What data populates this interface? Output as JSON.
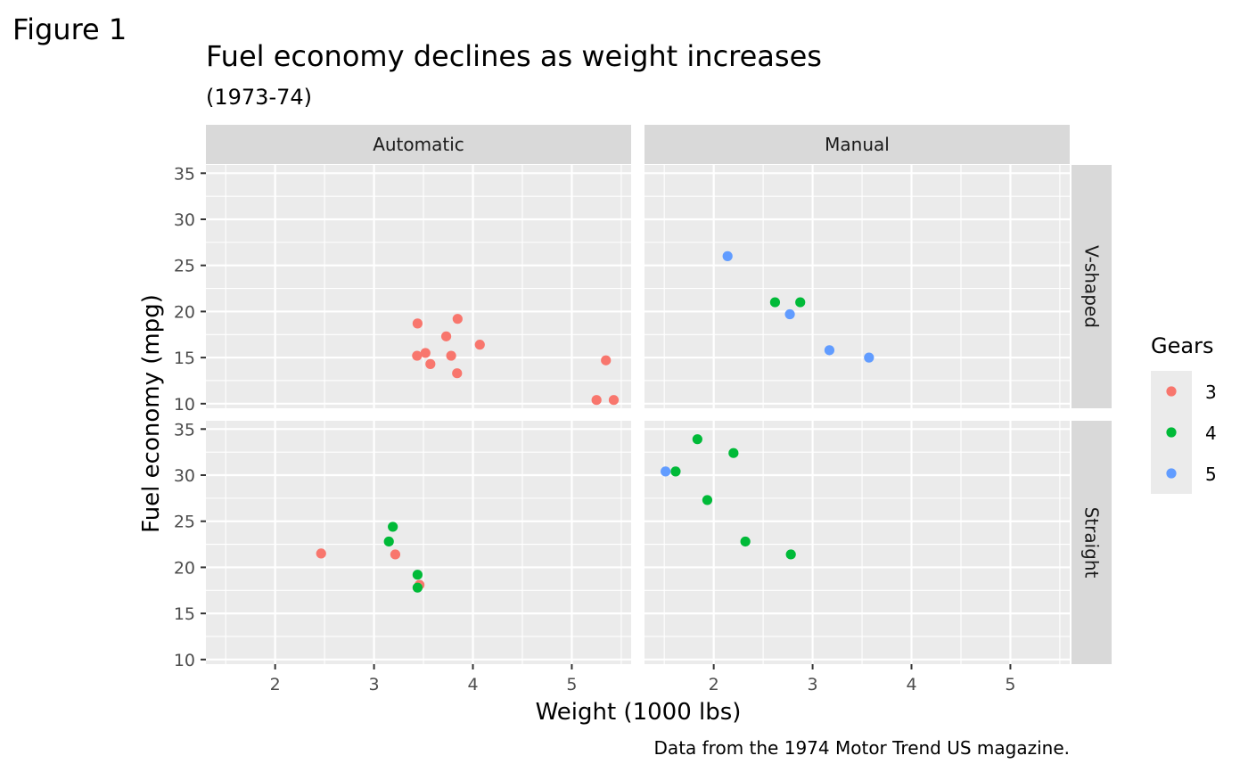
{
  "figure_label": "Figure 1",
  "chart_data": {
    "type": "scatter",
    "title": "Fuel economy declines as weight increases",
    "subtitle": "(1973-74)",
    "xlabel": "Weight (1000 lbs)",
    "ylabel": "Fuel economy (mpg)",
    "caption": "Data from the 1974 Motor Trend US magazine.",
    "xlim": [
      1.3,
      5.6
    ],
    "ylim": [
      9.5,
      35.9
    ],
    "x_ticks": [
      2,
      3,
      4,
      5
    ],
    "y_ticks": [
      10,
      15,
      20,
      25,
      30,
      35
    ],
    "grid": true,
    "facet_columns": [
      "Automatic",
      "Manual"
    ],
    "facet_rows": [
      "V-shaped",
      "Straight"
    ],
    "legend": {
      "title": "Gears",
      "position": "right",
      "entries": [
        {
          "label": "3",
          "color": "#F8766D"
        },
        {
          "label": "4",
          "color": "#00BA38"
        },
        {
          "label": "5",
          "color": "#619CFF"
        }
      ]
    },
    "panels": [
      {
        "column": "Automatic",
        "row": "V-shaped",
        "points": [
          {
            "x": 3.44,
            "y": 18.7,
            "gear": "3"
          },
          {
            "x": 3.57,
            "y": 14.3,
            "gear": "3"
          },
          {
            "x": 4.07,
            "y": 16.4,
            "gear": "3"
          },
          {
            "x": 3.73,
            "y": 17.3,
            "gear": "3"
          },
          {
            "x": 3.78,
            "y": 15.2,
            "gear": "3"
          },
          {
            "x": 5.25,
            "y": 10.4,
            "gear": "3"
          },
          {
            "x": 5.424,
            "y": 10.4,
            "gear": "3"
          },
          {
            "x": 5.345,
            "y": 14.7,
            "gear": "3"
          },
          {
            "x": 3.52,
            "y": 15.5,
            "gear": "3"
          },
          {
            "x": 3.435,
            "y": 15.2,
            "gear": "3"
          },
          {
            "x": 3.84,
            "y": 13.3,
            "gear": "3"
          },
          {
            "x": 3.845,
            "y": 19.2,
            "gear": "3"
          }
        ]
      },
      {
        "column": "Manual",
        "row": "V-shaped",
        "points": [
          {
            "x": 2.62,
            "y": 21.0,
            "gear": "4"
          },
          {
            "x": 2.875,
            "y": 21.0,
            "gear": "4"
          },
          {
            "x": 2.14,
            "y": 26.0,
            "gear": "5"
          },
          {
            "x": 3.17,
            "y": 15.8,
            "gear": "5"
          },
          {
            "x": 2.77,
            "y": 19.7,
            "gear": "5"
          },
          {
            "x": 3.57,
            "y": 15.0,
            "gear": "5"
          }
        ]
      },
      {
        "column": "Automatic",
        "row": "Straight",
        "points": [
          {
            "x": 3.215,
            "y": 21.4,
            "gear": "3"
          },
          {
            "x": 3.46,
            "y": 18.1,
            "gear": "3"
          },
          {
            "x": 2.465,
            "y": 21.5,
            "gear": "3"
          },
          {
            "x": 3.19,
            "y": 24.4,
            "gear": "4"
          },
          {
            "x": 3.15,
            "y": 22.8,
            "gear": "4"
          },
          {
            "x": 3.44,
            "y": 19.2,
            "gear": "4"
          },
          {
            "x": 3.44,
            "y": 17.8,
            "gear": "4"
          }
        ]
      },
      {
        "column": "Manual",
        "row": "Straight",
        "points": [
          {
            "x": 2.32,
            "y": 22.8,
            "gear": "4"
          },
          {
            "x": 2.2,
            "y": 32.4,
            "gear": "4"
          },
          {
            "x": 1.615,
            "y": 30.4,
            "gear": "4"
          },
          {
            "x": 1.835,
            "y": 33.9,
            "gear": "4"
          },
          {
            "x": 1.935,
            "y": 27.3,
            "gear": "4"
          },
          {
            "x": 2.78,
            "y": 21.4,
            "gear": "4"
          },
          {
            "x": 1.513,
            "y": 30.4,
            "gear": "5"
          }
        ]
      }
    ]
  }
}
